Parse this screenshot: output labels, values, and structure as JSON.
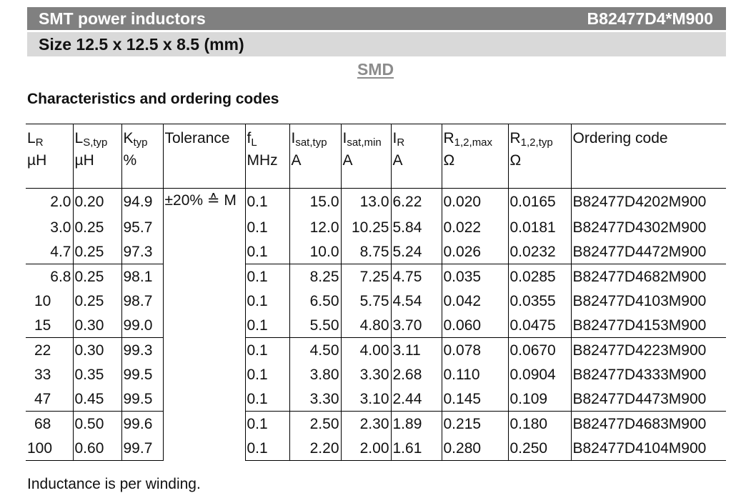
{
  "header": {
    "title": "SMT power inductors",
    "part_number": "B82477D4*M900",
    "size": "Size 12.5 x 12.5 x 8.5 (mm)",
    "mount_type": "SMD"
  },
  "section_title": "Characteristics and ordering codes",
  "table": {
    "columns": [
      {
        "symbol": "L",
        "sub": "R",
        "unit": "µH"
      },
      {
        "symbol": "L",
        "sub": "S,typ",
        "unit": "µH"
      },
      {
        "symbol": "K",
        "sub": "typ",
        "unit": "%"
      },
      {
        "symbol": "Tolerance",
        "sub": "",
        "unit": ""
      },
      {
        "symbol": "f",
        "sub": "L",
        "unit": "MHz"
      },
      {
        "symbol": "I",
        "sub": "sat,typ",
        "unit": "A"
      },
      {
        "symbol": "I",
        "sub": "sat,min",
        "unit": "A"
      },
      {
        "symbol": "I",
        "sub": "R",
        "unit": "A"
      },
      {
        "symbol": "R",
        "sub": "1,2,max",
        "unit": "Ω"
      },
      {
        "symbol": "R",
        "sub": "1,2,typ",
        "unit": "Ω"
      },
      {
        "symbol": "Ordering code",
        "sub": "",
        "unit": ""
      }
    ],
    "tolerance": "±20% ≙ M",
    "rows": [
      [
        "2.0",
        "0.20",
        "94.9",
        "0.1",
        "15.0",
        "13.0",
        "6.22",
        "0.020",
        "0.0165",
        "B82477D4202M900"
      ],
      [
        "3.0",
        "0.25",
        "95.7",
        "0.1",
        "12.0",
        "10.25",
        "5.84",
        "0.022",
        "0.0181",
        "B82477D4302M900"
      ],
      [
        "4.7",
        "0.25",
        "97.3",
        "0.1",
        "10.0",
        "8.75",
        "5.24",
        "0.026",
        "0.0232",
        "B82477D4472M900"
      ],
      [
        "6.8",
        "0.25",
        "98.1",
        "0.1",
        "8.25",
        "7.25",
        "4.75",
        "0.035",
        "0.0285",
        "B82477D4682M900"
      ],
      [
        "10",
        "0.25",
        "98.7",
        "0.1",
        "6.50",
        "5.75",
        "4.54",
        "0.042",
        "0.0355",
        "B82477D4103M900"
      ],
      [
        "15",
        "0.30",
        "99.0",
        "0.1",
        "5.50",
        "4.80",
        "3.70",
        "0.060",
        "0.0475",
        "B82477D4153M900"
      ],
      [
        "22",
        "0.30",
        "99.3",
        "0.1",
        "4.50",
        "4.00",
        "3.11",
        "0.078",
        "0.0670",
        "B82477D4223M900"
      ],
      [
        "33",
        "0.35",
        "99.5",
        "0.1",
        "3.80",
        "3.30",
        "2.68",
        "0.110",
        "0.0904",
        "B82477D4333M900"
      ],
      [
        "47",
        "0.45",
        "99.5",
        "0.1",
        "3.30",
        "3.10",
        "2.44",
        "0.145",
        "0.109",
        "B82477D4473M900"
      ],
      [
        "68",
        "0.50",
        "99.6",
        "0.1",
        "2.50",
        "2.30",
        "1.89",
        "0.215",
        "0.180",
        "B82477D4683M900"
      ],
      [
        "100",
        "0.60",
        "99.7",
        "0.1",
        "2.20",
        "2.00",
        "1.61",
        "0.280",
        "0.250",
        "B82477D4104M900"
      ]
    ]
  },
  "footnote": "Inductance is per winding."
}
